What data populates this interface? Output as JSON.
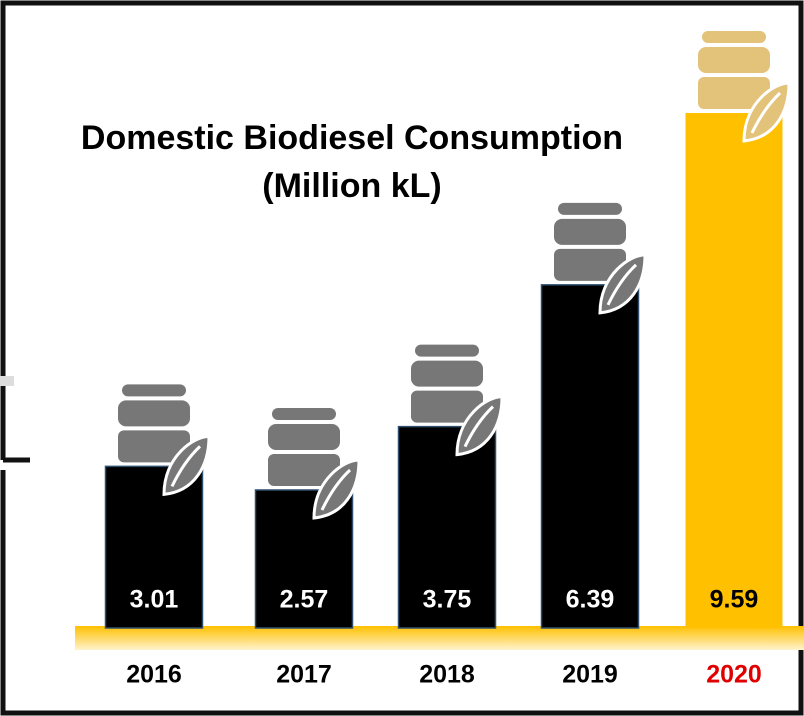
{
  "chart_data": {
    "type": "bar",
    "title": "Domestic Biodiesel Consumption",
    "subtitle": "(Million kL)",
    "categories": [
      "2016",
      "2017",
      "2018",
      "2019",
      "2020"
    ],
    "values": [
      3.01,
      2.57,
      3.75,
      6.39,
      9.59
    ],
    "value_labels": [
      "3.01",
      "2.57",
      "3.75",
      "6.39",
      "9.59"
    ],
    "colors": [
      "#000000",
      "#000000",
      "#000000",
      "#000000",
      "#ffc000"
    ],
    "category_label_colors": [
      "#000000",
      "#000000",
      "#000000",
      "#000000",
      "#e00000"
    ]
  }
}
